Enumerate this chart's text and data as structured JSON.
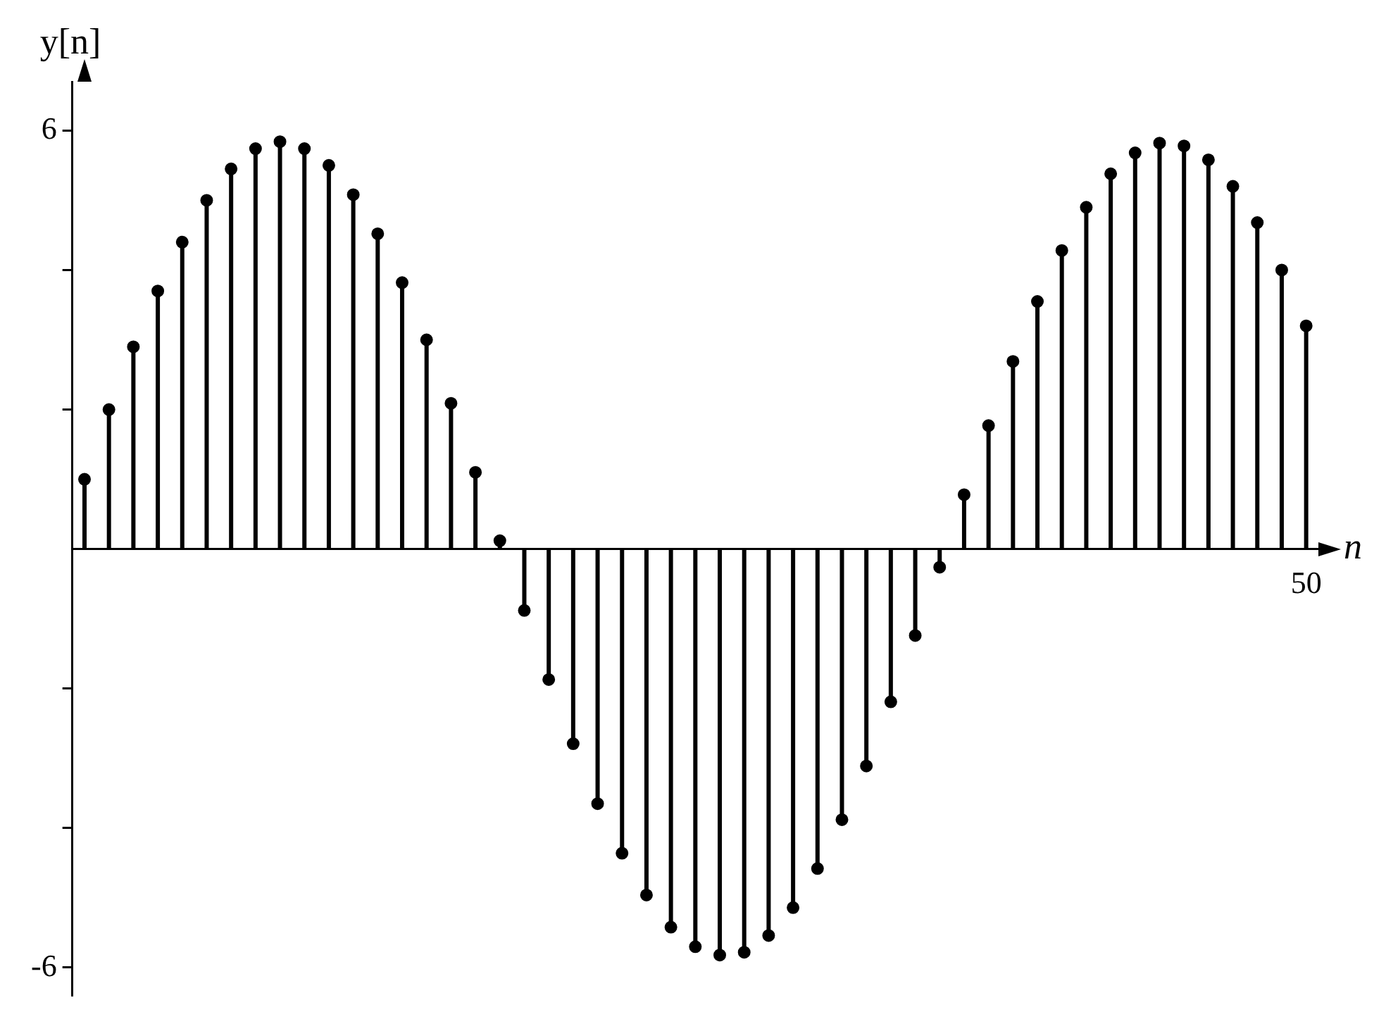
{
  "chart_data": {
    "type": "lollipop",
    "xlabel": "n",
    "ylabel": "y[n]",
    "color": "#000000",
    "marker": "circle",
    "categories": [
      null,
      null,
      null,
      null,
      null,
      null,
      null,
      null,
      null,
      null,
      null,
      null,
      null,
      null,
      null,
      null,
      null,
      null,
      null,
      null,
      null,
      null,
      null,
      null,
      null,
      null,
      null,
      null,
      null,
      null,
      null,
      null,
      null,
      null,
      null,
      null,
      null,
      null,
      null,
      null,
      null,
      null,
      null,
      null,
      null,
      null,
      null,
      null,
      null,
      null,
      "50"
    ],
    "values": [
      1.0,
      2.0,
      2.9,
      3.7,
      4.4,
      5.0,
      5.45,
      5.74,
      5.84,
      5.74,
      5.5,
      5.08,
      4.52,
      3.82,
      3.0,
      2.09,
      1.1,
      0.12,
      -0.88,
      -1.87,
      -2.79,
      -3.65,
      -4.36,
      -4.96,
      -5.42,
      -5.7,
      -5.82,
      -5.78,
      -5.54,
      -5.14,
      -4.58,
      -3.88,
      -3.11,
      -2.19,
      -1.24,
      -0.26,
      0.78,
      1.77,
      2.69,
      3.55,
      4.28,
      4.9,
      5.38,
      5.68,
      5.82,
      5.78,
      5.58,
      5.2,
      4.68,
      4.0,
      3.2
    ],
    "ylim": [
      -6.4,
      6.7
    ],
    "yticks": [
      -6,
      {
        "value": -4,
        "label": null
      },
      {
        "value": -2,
        "label": null
      },
      {
        "value": 2,
        "label": null
      },
      {
        "value": 4,
        "label": null
      },
      6
    ]
  }
}
